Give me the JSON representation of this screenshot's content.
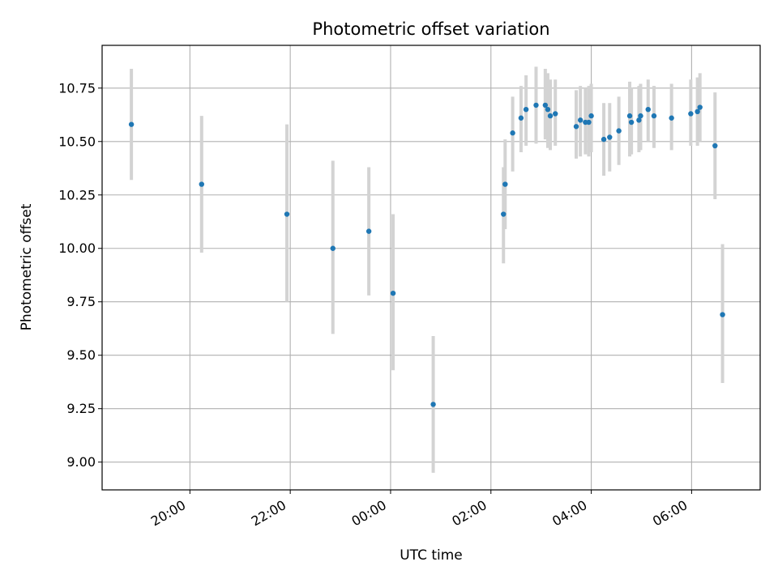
{
  "chart_data": {
    "type": "scatter",
    "title": "Photometric offset variation",
    "xlabel": "UTC time",
    "ylabel": "Photometric offset",
    "x_axis_kind": "time",
    "xlim": [
      "18:15",
      "07:22"
    ],
    "ylim": [
      8.87,
      10.95
    ],
    "grid": true,
    "x_ticks": [
      "20:00",
      "22:00",
      "00:00",
      "02:00",
      "04:00",
      "06:00"
    ],
    "y_ticks": [
      9.0,
      9.25,
      9.5,
      9.75,
      10.0,
      10.25,
      10.5,
      10.75
    ],
    "y_tick_labels": [
      "9.00",
      "9.25",
      "9.50",
      "9.75",
      "10.00",
      "10.25",
      "10.50",
      "10.75"
    ],
    "colors": {
      "point": "#1f77b4",
      "errorbar": "#d3d3d3",
      "grid": "#b0b0b0"
    },
    "series": [
      {
        "points": [
          {
            "t": "18:50",
            "y": 10.58,
            "lo": 10.32,
            "hi": 10.84
          },
          {
            "t": "20:14",
            "y": 10.3,
            "lo": 9.98,
            "hi": 10.62
          },
          {
            "t": "21:56",
            "y": 10.16,
            "lo": 9.75,
            "hi": 10.58
          },
          {
            "t": "22:51",
            "y": 10.0,
            "lo": 9.6,
            "hi": 10.41
          },
          {
            "t": "23:34",
            "y": 10.08,
            "lo": 9.78,
            "hi": 10.38
          },
          {
            "t": "00:03",
            "y": 9.79,
            "lo": 9.43,
            "hi": 10.16
          },
          {
            "t": "00:51",
            "y": 9.27,
            "lo": 8.95,
            "hi": 9.59
          },
          {
            "t": "02:15",
            "y": 10.16,
            "lo": 9.93,
            "hi": 10.38
          },
          {
            "t": "02:17",
            "y": 10.3,
            "lo": 10.09,
            "hi": 10.51
          },
          {
            "t": "02:26",
            "y": 10.54,
            "lo": 10.36,
            "hi": 10.71
          },
          {
            "t": "02:36",
            "y": 10.61,
            "lo": 10.45,
            "hi": 10.76
          },
          {
            "t": "02:42",
            "y": 10.65,
            "lo": 10.48,
            "hi": 10.81
          },
          {
            "t": "02:54",
            "y": 10.67,
            "lo": 10.49,
            "hi": 10.85
          },
          {
            "t": "03:05",
            "y": 10.67,
            "lo": 10.51,
            "hi": 10.84
          },
          {
            "t": "03:08",
            "y": 10.65,
            "lo": 10.47,
            "hi": 10.82
          },
          {
            "t": "03:11",
            "y": 10.62,
            "lo": 10.46,
            "hi": 10.79
          },
          {
            "t": "03:17",
            "y": 10.63,
            "lo": 10.48,
            "hi": 10.79
          },
          {
            "t": "03:42",
            "y": 10.57,
            "lo": 10.42,
            "hi": 10.74
          },
          {
            "t": "03:47",
            "y": 10.6,
            "lo": 10.43,
            "hi": 10.76
          },
          {
            "t": "03:53",
            "y": 10.59,
            "lo": 10.44,
            "hi": 10.75
          },
          {
            "t": "03:57",
            "y": 10.59,
            "lo": 10.43,
            "hi": 10.76
          },
          {
            "t": "04:00",
            "y": 10.62,
            "lo": 10.45,
            "hi": 10.77
          },
          {
            "t": "04:15",
            "y": 10.51,
            "lo": 10.34,
            "hi": 10.68
          },
          {
            "t": "04:22",
            "y": 10.52,
            "lo": 10.36,
            "hi": 10.68
          },
          {
            "t": "04:33",
            "y": 10.55,
            "lo": 10.39,
            "hi": 10.71
          },
          {
            "t": "04:46",
            "y": 10.62,
            "lo": 10.43,
            "hi": 10.78
          },
          {
            "t": "04:48",
            "y": 10.59,
            "lo": 10.44,
            "hi": 10.75
          },
          {
            "t": "04:57",
            "y": 10.6,
            "lo": 10.45,
            "hi": 10.76
          },
          {
            "t": "04:59",
            "y": 10.62,
            "lo": 10.46,
            "hi": 10.77
          },
          {
            "t": "05:08",
            "y": 10.65,
            "lo": 10.5,
            "hi": 10.79
          },
          {
            "t": "05:15",
            "y": 10.62,
            "lo": 10.47,
            "hi": 10.76
          },
          {
            "t": "05:36",
            "y": 10.61,
            "lo": 10.46,
            "hi": 10.77
          },
          {
            "t": "05:59",
            "y": 10.63,
            "lo": 10.48,
            "hi": 10.79
          },
          {
            "t": "06:07",
            "y": 10.64,
            "lo": 10.48,
            "hi": 10.8
          },
          {
            "t": "06:10",
            "y": 10.66,
            "lo": 10.5,
            "hi": 10.82
          },
          {
            "t": "06:28",
            "y": 10.48,
            "lo": 10.23,
            "hi": 10.73
          },
          {
            "t": "06:37",
            "y": 9.69,
            "lo": 9.37,
            "hi": 10.02
          }
        ]
      }
    ]
  }
}
